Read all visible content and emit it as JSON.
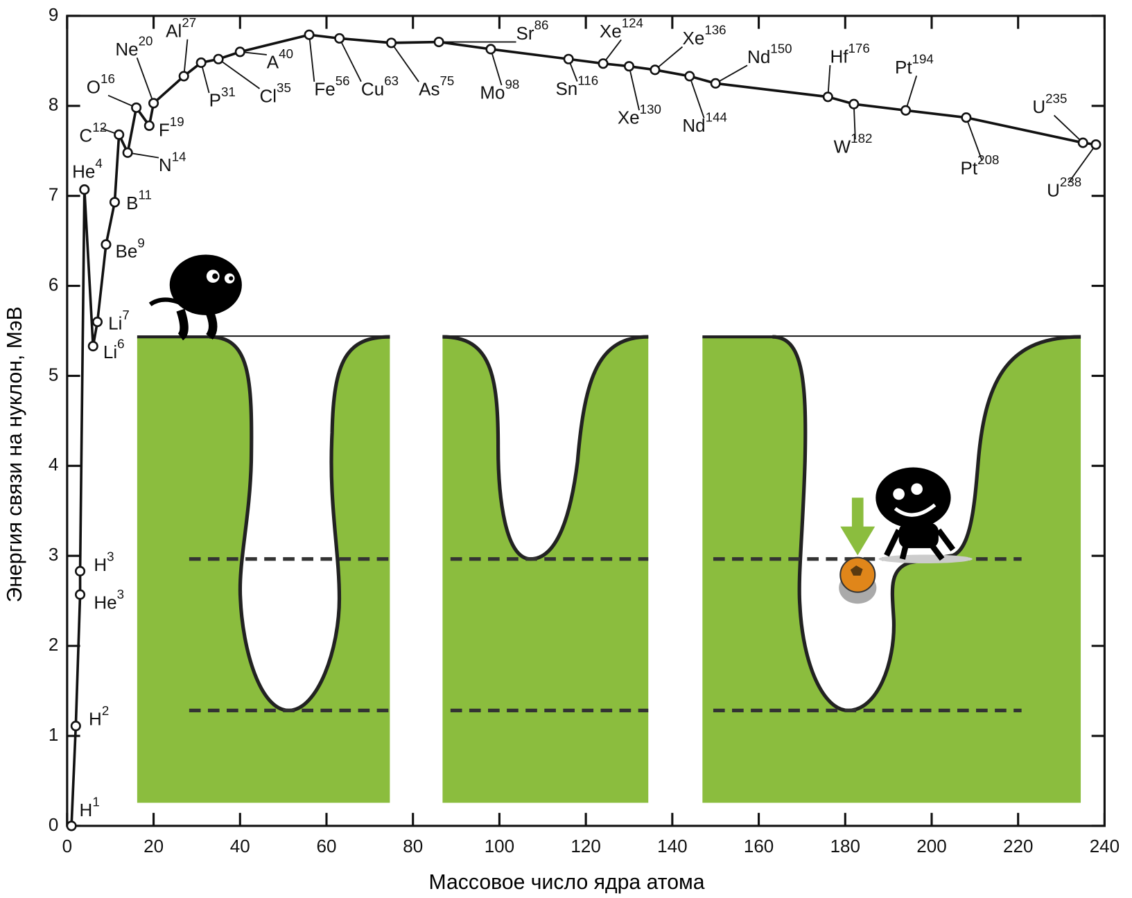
{
  "chart_data": {
    "type": "line",
    "x_label": "Массовое число ядра атома",
    "y_label": "Энергия связи на нуклон, МэВ",
    "color": "#111111",
    "xlim": [
      0,
      240
    ],
    "ylim": [
      0,
      9
    ],
    "xticks": [
      0,
      20,
      40,
      60,
      80,
      100,
      120,
      140,
      160,
      180,
      200,
      220,
      240
    ],
    "yticks": [
      0,
      1,
      2,
      3,
      4,
      5,
      6,
      7,
      8,
      9
    ],
    "point_symbols": [
      "H",
      "H",
      "He",
      "H",
      "He",
      "Li",
      "Li",
      "Be",
      "B",
      "C",
      "N",
      "O",
      "F",
      "Ne",
      "Al",
      "P",
      "Cl",
      "A",
      "Fe",
      "Cu",
      "As",
      "Sr",
      "Mo",
      "Sn",
      "Xe",
      "Xe",
      "Xe",
      "Nd",
      "Nd",
      "Hf",
      "W",
      "Pt",
      "Pt",
      "U",
      "U"
    ],
    "x": [
      1,
      2,
      3,
      3,
      4,
      6,
      7,
      9,
      11,
      12,
      14,
      16,
      19,
      20,
      27,
      31,
      35,
      40,
      56,
      63,
      75,
      86,
      98,
      116,
      124,
      130,
      136,
      144,
      150,
      176,
      182,
      194,
      208,
      235,
      238
    ],
    "values": [
      0,
      1.11,
      2.57,
      2.83,
      7.07,
      5.33,
      5.6,
      6.46,
      6.93,
      7.68,
      7.48,
      7.98,
      7.78,
      8.03,
      8.33,
      8.48,
      8.52,
      8.6,
      8.79,
      8.75,
      8.7,
      8.71,
      8.63,
      8.52,
      8.47,
      8.44,
      8.4,
      8.33,
      8.25,
      8.1,
      8.02,
      7.95,
      7.87,
      7.59,
      7.57
    ]
  }
}
